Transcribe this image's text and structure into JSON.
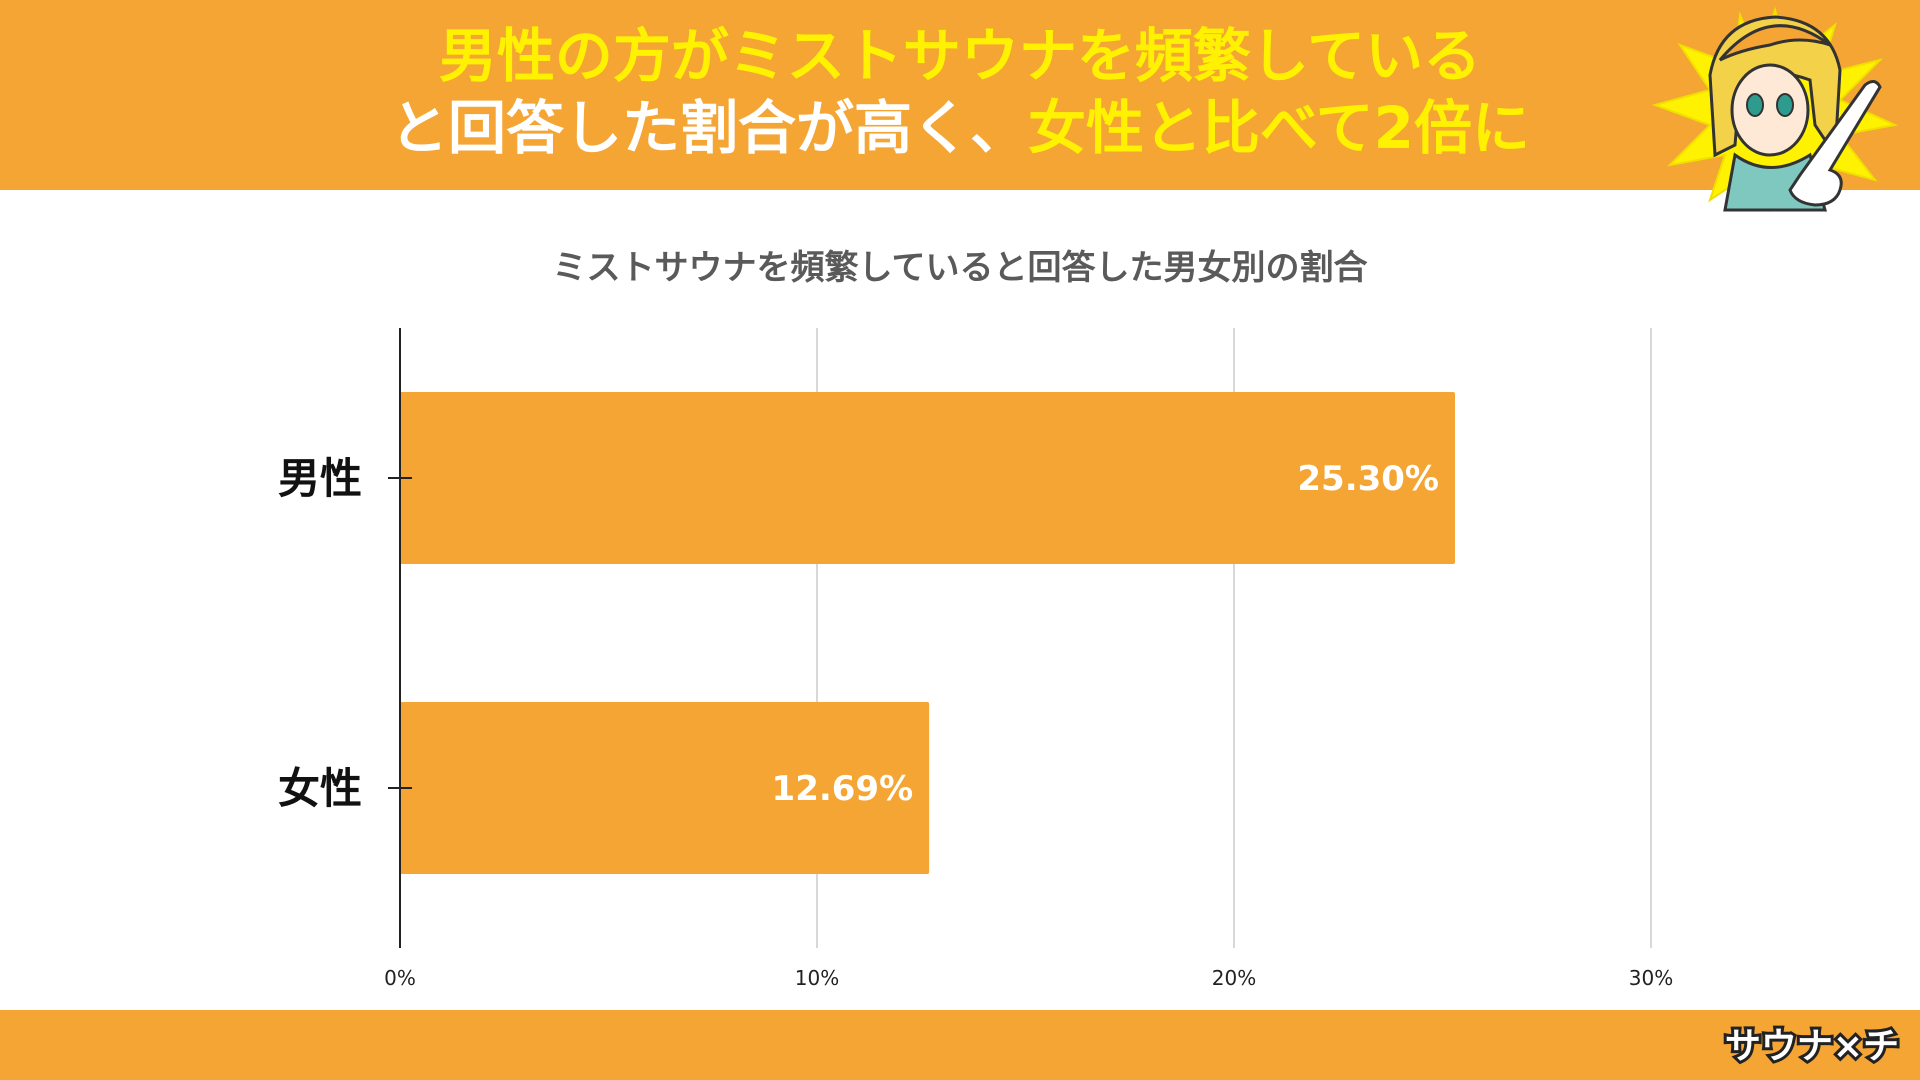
{
  "header": {
    "line1": "男性の方がミストサウナを頻繁している",
    "line2_a": "と回答した割合が高く、",
    "line2_b": "女性と比べて2倍に"
  },
  "colors": {
    "brand_orange": "#f4a533",
    "highlight_yellow": "#fff200",
    "bar": "#f4a533"
  },
  "footer": {
    "logo_text": "サウナ×チ"
  },
  "chart_data": {
    "type": "bar",
    "orientation": "horizontal",
    "title": "ミストサウナを頻繁していると回答した男女別の割合",
    "categories": [
      "男性",
      "女性"
    ],
    "values": [
      25.3,
      12.69
    ],
    "value_labels": [
      "25.30%",
      "12.69%"
    ],
    "xlim": [
      0,
      30
    ],
    "xticks": [
      0,
      10,
      20,
      30
    ],
    "xtick_labels": [
      "0%",
      "10%",
      "20%",
      "30%"
    ],
    "xlabel": "",
    "ylabel": "",
    "grid": true,
    "legend": "none"
  }
}
